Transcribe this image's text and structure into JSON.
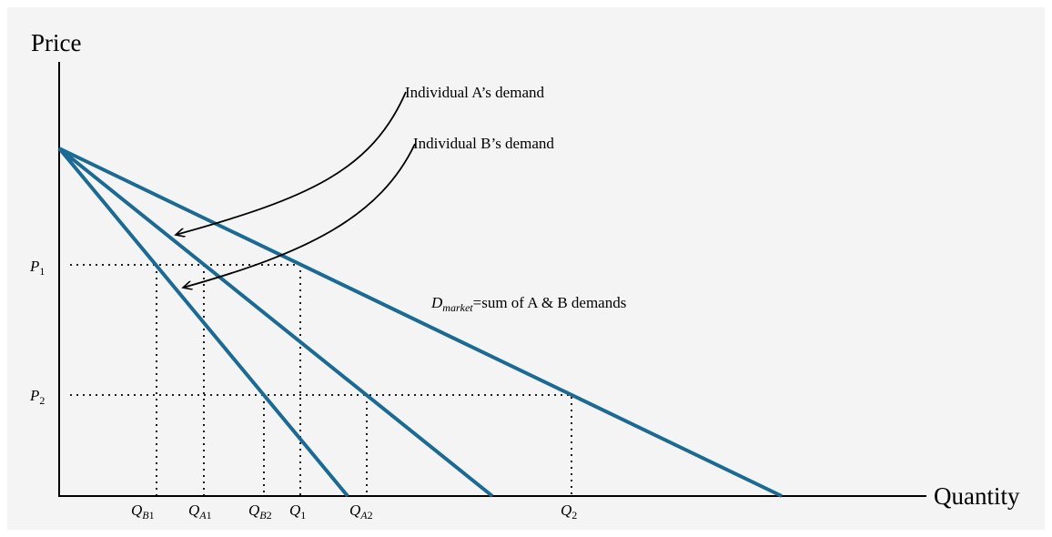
{
  "axes": {
    "y_title": "Price",
    "x_title": "Quantity"
  },
  "price_levels": [
    {
      "base": "P",
      "sub": "1"
    },
    {
      "base": "P",
      "sub": "2"
    }
  ],
  "quantity_levels": [
    {
      "base": "Q",
      "sub_italic": "B",
      "sub": "1"
    },
    {
      "base": "Q",
      "sub_italic": "A",
      "sub": "1"
    },
    {
      "base": "Q",
      "sub_italic": "B",
      "sub": "2"
    },
    {
      "base": "Q",
      "sub_italic": "",
      "sub": "1"
    },
    {
      "base": "Q",
      "sub_italic": "A",
      "sub": "2"
    },
    {
      "base": "Q",
      "sub_italic": "",
      "sub": "2"
    }
  ],
  "annotations": {
    "demand_a": "Individual A’s demand",
    "demand_b": "Individual B’s demand",
    "market_base": "D",
    "market_sub": "market",
    "market_rest": "=sum of A & B demands"
  },
  "colors": {
    "demand_lines": "#1a6a93",
    "background": "#f4f4f4"
  }
}
